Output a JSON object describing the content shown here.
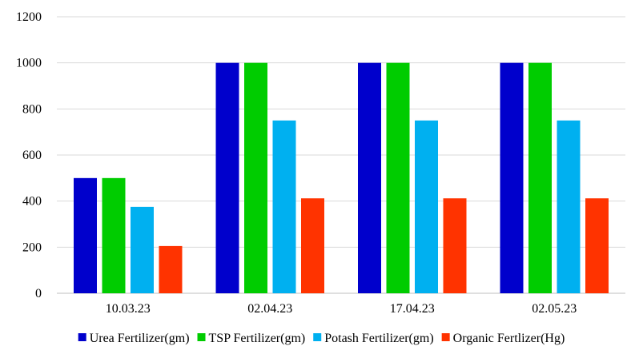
{
  "chart_data": {
    "type": "bar",
    "title": "",
    "xlabel": "",
    "ylabel": "",
    "ylim": [
      0,
      1200
    ],
    "yticks": [
      0,
      200,
      400,
      600,
      800,
      1000,
      1200
    ],
    "grid": true,
    "legend_position": "bottom",
    "categories": [
      "10.03.23",
      "02.04.23",
      "17.04.23",
      "02.05.23"
    ],
    "series": [
      {
        "name": "Urea Fertilizer(gm)",
        "color": "#0000CC",
        "values": [
          500,
          1000,
          1000,
          1000
        ]
      },
      {
        "name": "TSP Fertilizer(gm)",
        "color": "#00CC00",
        "values": [
          500,
          1000,
          1000,
          1000
        ]
      },
      {
        "name": "Potash Fertilizer(gm)",
        "color": "#00B0F0",
        "values": [
          375,
          750,
          750,
          750
        ]
      },
      {
        "name": "Organic Fertlizer(Hg)",
        "color": "#FF3300",
        "values": [
          205,
          412,
          412,
          412
        ]
      }
    ]
  }
}
